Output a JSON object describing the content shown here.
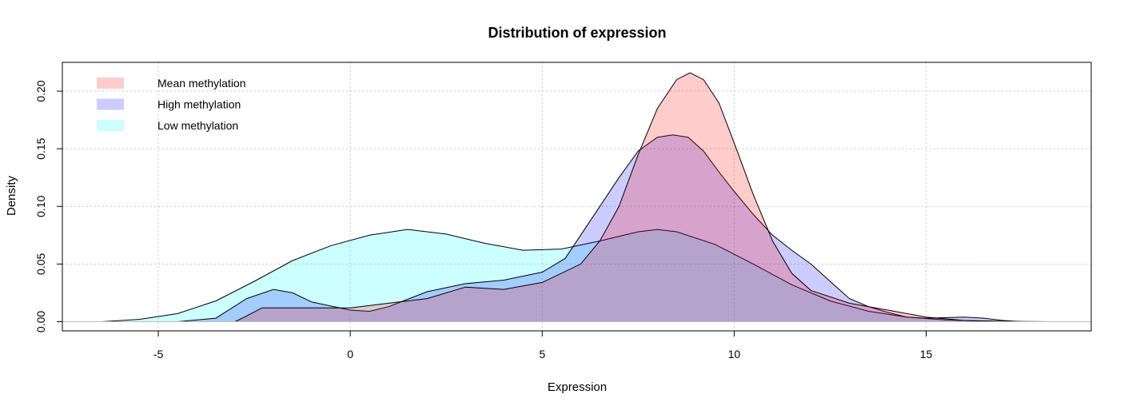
{
  "chart_data": {
    "type": "area",
    "title": "Distribution of expression",
    "xlabel": "Expression",
    "ylabel": "Density",
    "xlim": [
      -7.5,
      19.3
    ],
    "ylim": [
      -0.008,
      0.225
    ],
    "xticks": [
      -5,
      0,
      5,
      10,
      15
    ],
    "yticks": [
      0.0,
      0.05,
      0.1,
      0.15,
      0.2
    ],
    "ytick_labels": [
      "0.00",
      "0.05",
      "0.10",
      "0.15",
      "0.20"
    ],
    "grid": true,
    "legend_position": "top-left",
    "series": [
      {
        "name": "Mean methylation",
        "color": "#ff0000",
        "points": [
          [
            -3.0,
            0.0
          ],
          [
            -2.7,
            0.005
          ],
          [
            -2.3,
            0.012
          ],
          [
            -1.8,
            0.012
          ],
          [
            -1.0,
            0.012
          ],
          [
            0.0,
            0.012
          ],
          [
            1.0,
            0.016
          ],
          [
            2.0,
            0.02
          ],
          [
            3.0,
            0.03
          ],
          [
            4.0,
            0.028
          ],
          [
            5.0,
            0.034
          ],
          [
            6.0,
            0.05
          ],
          [
            6.5,
            0.07
          ],
          [
            7.0,
            0.1
          ],
          [
            7.5,
            0.145
          ],
          [
            8.0,
            0.185
          ],
          [
            8.5,
            0.21
          ],
          [
            8.85,
            0.216
          ],
          [
            9.2,
            0.21
          ],
          [
            9.6,
            0.19
          ],
          [
            10.0,
            0.155
          ],
          [
            10.5,
            0.11
          ],
          [
            11.0,
            0.07
          ],
          [
            11.5,
            0.042
          ],
          [
            12.0,
            0.027
          ],
          [
            13.0,
            0.016
          ],
          [
            14.0,
            0.01
          ],
          [
            15.0,
            0.004
          ],
          [
            16.0,
            0.001
          ],
          [
            17.5,
            0.0
          ]
        ]
      },
      {
        "name": "High methylation",
        "color": "#0000ff",
        "points": [
          [
            -4.5,
            0.0
          ],
          [
            -3.5,
            0.003
          ],
          [
            -2.7,
            0.02
          ],
          [
            -2.0,
            0.028
          ],
          [
            -1.5,
            0.025
          ],
          [
            -1.0,
            0.017
          ],
          [
            0.0,
            0.01
          ],
          [
            0.5,
            0.009
          ],
          [
            1.0,
            0.013
          ],
          [
            2.0,
            0.026
          ],
          [
            3.0,
            0.033
          ],
          [
            4.0,
            0.036
          ],
          [
            5.0,
            0.043
          ],
          [
            5.6,
            0.055
          ],
          [
            6.0,
            0.075
          ],
          [
            6.5,
            0.1
          ],
          [
            7.0,
            0.125
          ],
          [
            7.5,
            0.148
          ],
          [
            8.0,
            0.16
          ],
          [
            8.4,
            0.162
          ],
          [
            8.8,
            0.16
          ],
          [
            9.2,
            0.148
          ],
          [
            9.6,
            0.13
          ],
          [
            10.0,
            0.113
          ],
          [
            10.5,
            0.093
          ],
          [
            11.0,
            0.075
          ],
          [
            11.5,
            0.062
          ],
          [
            12.0,
            0.05
          ],
          [
            12.5,
            0.035
          ],
          [
            13.0,
            0.02
          ],
          [
            13.5,
            0.013
          ],
          [
            14.0,
            0.008
          ],
          [
            14.5,
            0.004
          ],
          [
            15.0,
            0.003
          ],
          [
            16.0,
            0.004
          ],
          [
            16.5,
            0.003
          ],
          [
            17.0,
            0.001
          ],
          [
            17.5,
            0.0
          ]
        ]
      },
      {
        "name": "Low methylation",
        "color": "#00ffff",
        "points": [
          [
            -6.5,
            0.0
          ],
          [
            -5.5,
            0.002
          ],
          [
            -4.5,
            0.007
          ],
          [
            -3.5,
            0.018
          ],
          [
            -2.5,
            0.035
          ],
          [
            -1.5,
            0.053
          ],
          [
            -0.5,
            0.066
          ],
          [
            0.5,
            0.075
          ],
          [
            1.5,
            0.08
          ],
          [
            2.5,
            0.076
          ],
          [
            3.5,
            0.068
          ],
          [
            4.5,
            0.062
          ],
          [
            5.5,
            0.063
          ],
          [
            6.5,
            0.07
          ],
          [
            7.5,
            0.078
          ],
          [
            8.0,
            0.08
          ],
          [
            8.5,
            0.078
          ],
          [
            9.5,
            0.067
          ],
          [
            10.5,
            0.05
          ],
          [
            11.5,
            0.032
          ],
          [
            12.5,
            0.018
          ],
          [
            13.5,
            0.009
          ],
          [
            14.5,
            0.004
          ],
          [
            15.5,
            0.0015
          ],
          [
            16.5,
            0.0005
          ],
          [
            18.3,
            0.0
          ]
        ]
      }
    ]
  }
}
